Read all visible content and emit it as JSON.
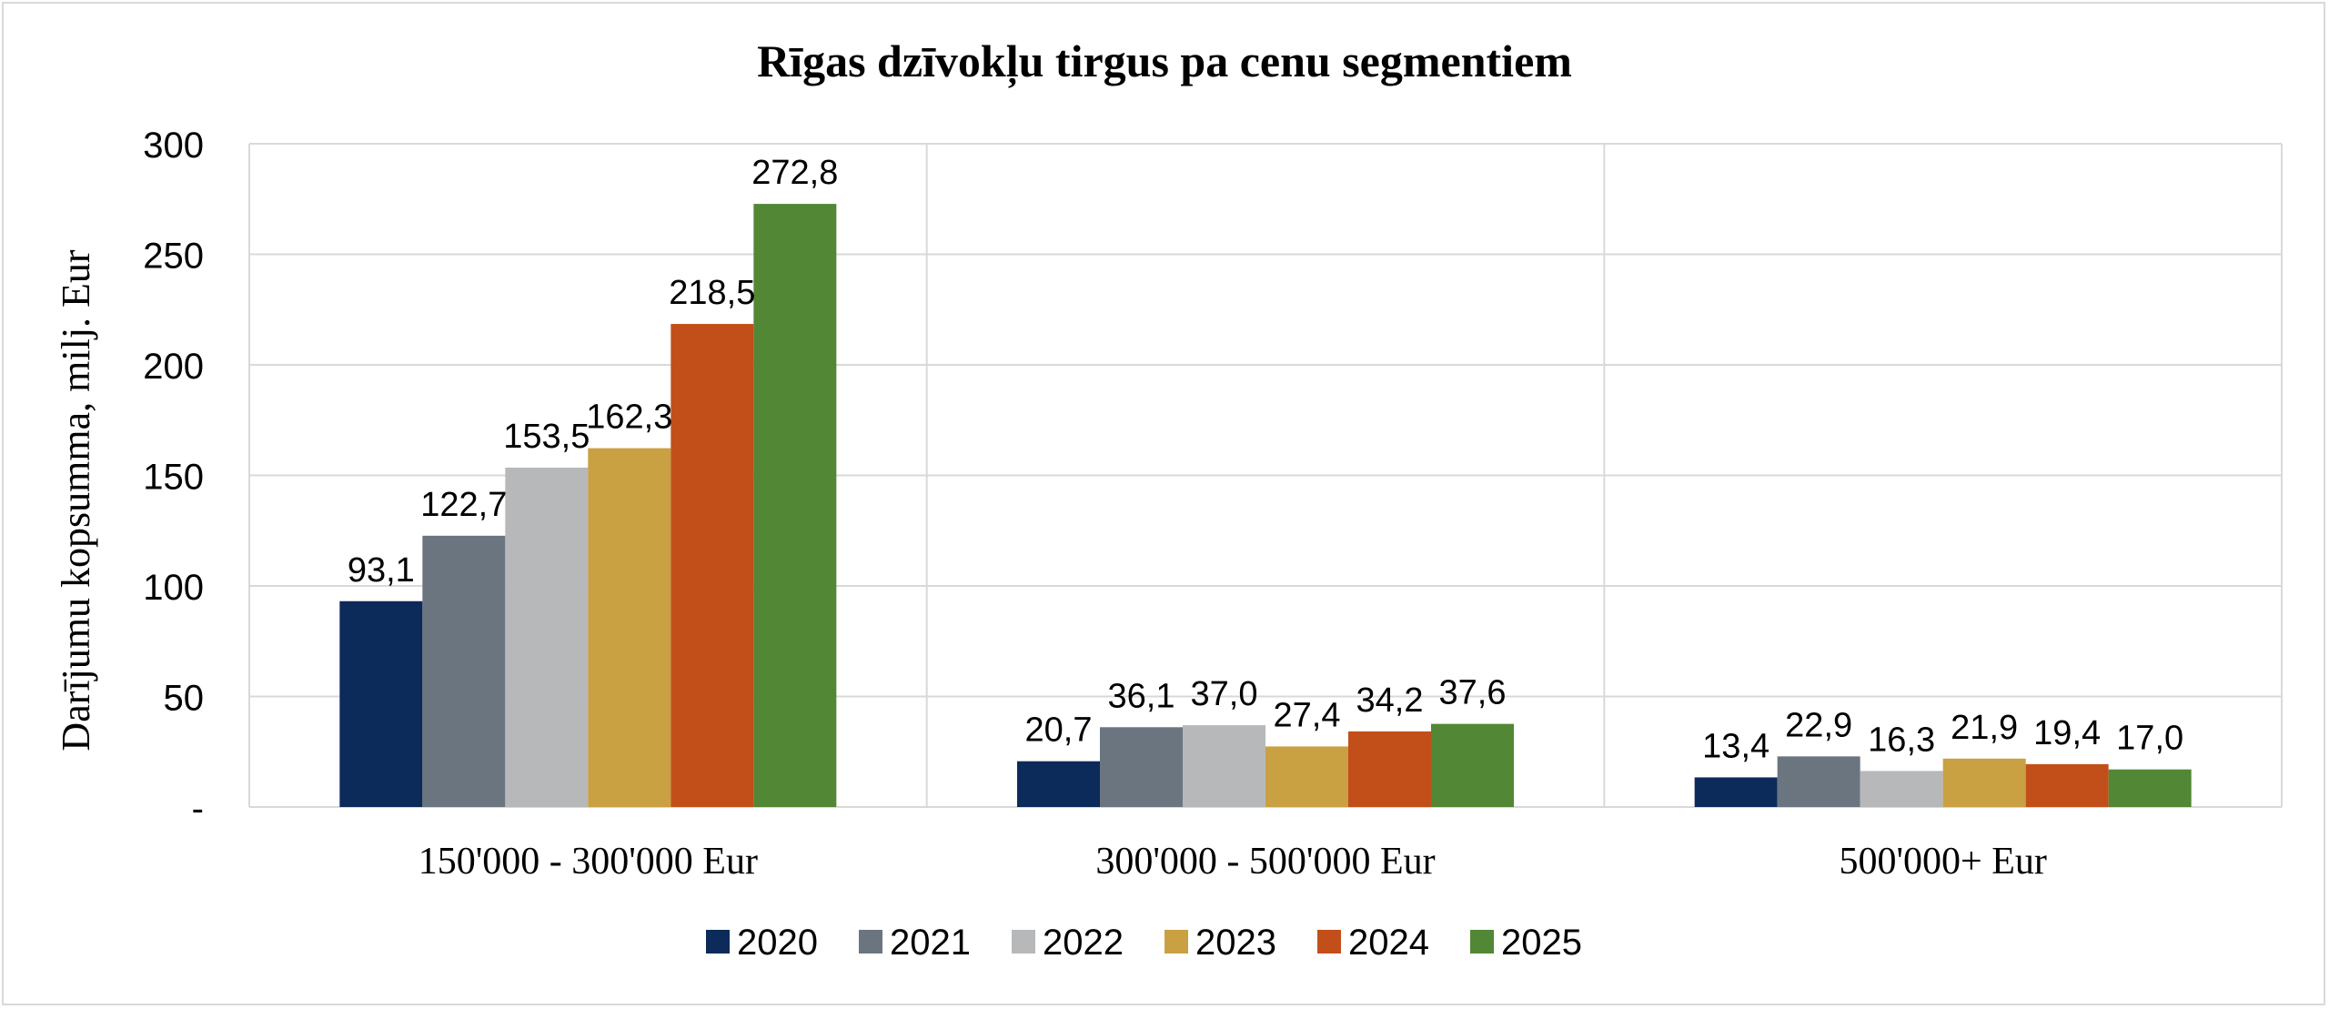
{
  "chart_data": {
    "type": "bar",
    "title": "Rīgas dzīvokļu tirgus pa cenu segmentiem",
    "ylabel": "Darījumu kopsumma, milj. Eur",
    "xlabel": "",
    "ylim": [
      0,
      300
    ],
    "yticks": [
      0,
      50,
      100,
      150,
      200,
      250,
      300
    ],
    "ytick_labels": [
      "-",
      "50",
      "100",
      "150",
      "200",
      "250",
      "300"
    ],
    "grid": true,
    "legend_position": "bottom",
    "categories": [
      "150'000 - 300'000 Eur",
      "300'000 - 500'000 Eur",
      "500'000+ Eur"
    ],
    "series": [
      {
        "name": "2020",
        "color": "#0c2a5a",
        "values": [
          93.1,
          20.7,
          13.4
        ],
        "labels": [
          "93,1",
          "20,7",
          "13,4"
        ]
      },
      {
        "name": "2021",
        "color": "#6b757f",
        "values": [
          122.7,
          36.1,
          22.9
        ],
        "labels": [
          "122,7",
          "36,1",
          "22,9"
        ]
      },
      {
        "name": "2022",
        "color": "#b7b8ba",
        "values": [
          153.5,
          37.0,
          16.3
        ],
        "labels": [
          "153,5",
          "37,0",
          "16,3"
        ]
      },
      {
        "name": "2023",
        "color": "#c9a042",
        "values": [
          162.3,
          27.4,
          21.9
        ],
        "labels": [
          "162,3",
          "27,4",
          "21,9"
        ]
      },
      {
        "name": "2024",
        "color": "#c24f19",
        "values": [
          218.5,
          34.2,
          19.4
        ],
        "labels": [
          "218,5",
          "34,2",
          "19,4"
        ]
      },
      {
        "name": "2025",
        "color": "#528735",
        "values": [
          272.8,
          37.6,
          17.0
        ],
        "labels": [
          "272,8",
          "37,6",
          "17,0"
        ]
      }
    ]
  }
}
